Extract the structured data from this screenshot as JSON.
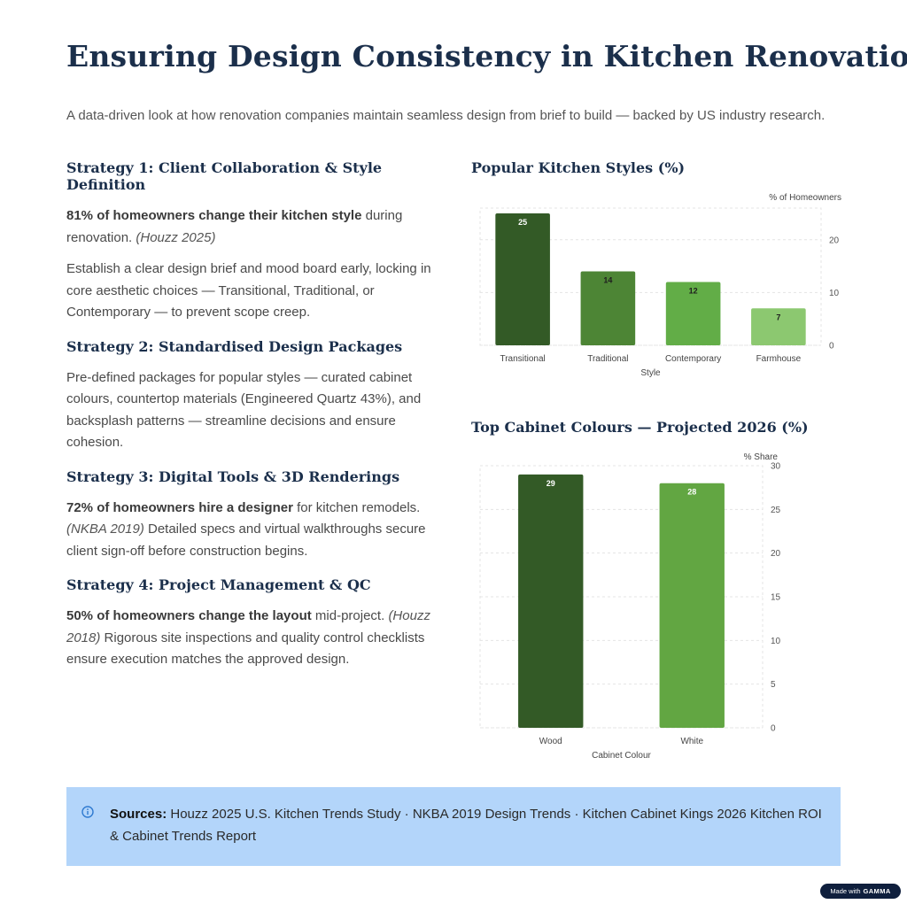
{
  "page": {
    "title": "Ensuring Design Consistency in Kitchen Renovations",
    "subtitle": "A data-driven look at how renovation companies maintain seamless design from brief to build — backed by US industry research."
  },
  "strategies": [
    {
      "heading": "Strategy 1: Client Collaboration & Style Definition",
      "p1_bold": "81% of homeowners change their kitchen style",
      "p1_text": " during renovation. ",
      "p1_cite": "(Houzz 2025)",
      "p2": "Establish a clear design brief and mood board early, locking in core aesthetic choices — Transitional, Traditional, or Contemporary — to prevent scope creep."
    },
    {
      "heading": "Strategy 2: Standardised Design Packages",
      "p1": "Pre-defined packages for popular styles — curated cabinet colours, countertop materials (Engineered Quartz 43%), and backsplash patterns — streamline decisions and ensure cohesion."
    },
    {
      "heading": "Strategy 3: Digital Tools & 3D Renderings",
      "p1_bold": "72% of homeowners hire a designer",
      "p1_text": " for kitchen remodels. ",
      "p1_cite": "(NKBA 2019)",
      "p1_tail": " Detailed specs and virtual walkthroughs secure client sign-off before construction begins."
    },
    {
      "heading": "Strategy 4: Project Management & QC",
      "p1_bold": "50% of homeowners change the layout",
      "p1_text": " mid-project. ",
      "p1_cite": "(Houzz 2018)",
      "p1_tail": " Rigorous site inspections and quality control checklists ensure execution matches the approved design."
    }
  ],
  "chart_titles": {
    "styles": "Popular Kitchen Styles (%)",
    "cabinets": "Top Cabinet Colours — Projected 2026 (%)"
  },
  "chart_data": [
    {
      "type": "bar",
      "title": "Popular Kitchen Styles (%)",
      "categories": [
        "Transitional",
        "Traditional",
        "Contemporary",
        "Farmhouse"
      ],
      "values": [
        25,
        14,
        12,
        7
      ],
      "colors": [
        "#335a26",
        "#4d8535",
        "#62ad47",
        "#8cc870"
      ],
      "xlabel": "Style",
      "ylabel": "% of Homeowners",
      "ylim": [
        0,
        26
      ],
      "yticks": [
        0,
        10,
        20
      ],
      "y_axis_side": "right",
      "grid": true,
      "legend": "none",
      "data_labels": true
    },
    {
      "type": "bar",
      "title": "Top Cabinet Colours — Projected 2026 (%)",
      "categories": [
        "Wood",
        "White"
      ],
      "values": [
        29,
        28
      ],
      "colors": [
        "#335a26",
        "#62a642"
      ],
      "xlabel": "Cabinet Colour",
      "ylabel": "% Share",
      "ylim": [
        0,
        30
      ],
      "yticks": [
        0,
        5,
        10,
        15,
        20,
        25,
        30
      ],
      "y_axis_side": "right",
      "grid": true,
      "legend": "none",
      "data_labels": true
    }
  ],
  "sources": {
    "label": "Sources:",
    "text": " Houzz 2025 U.S. Kitchen Trends Study · NKBA 2019 Design Trends · Kitchen Cabinet Kings 2026 Kitchen ROI & Cabinet Trends Report",
    "icon": "info-icon"
  },
  "badge": {
    "prefix": "Made with",
    "brand": "GAMMA"
  }
}
